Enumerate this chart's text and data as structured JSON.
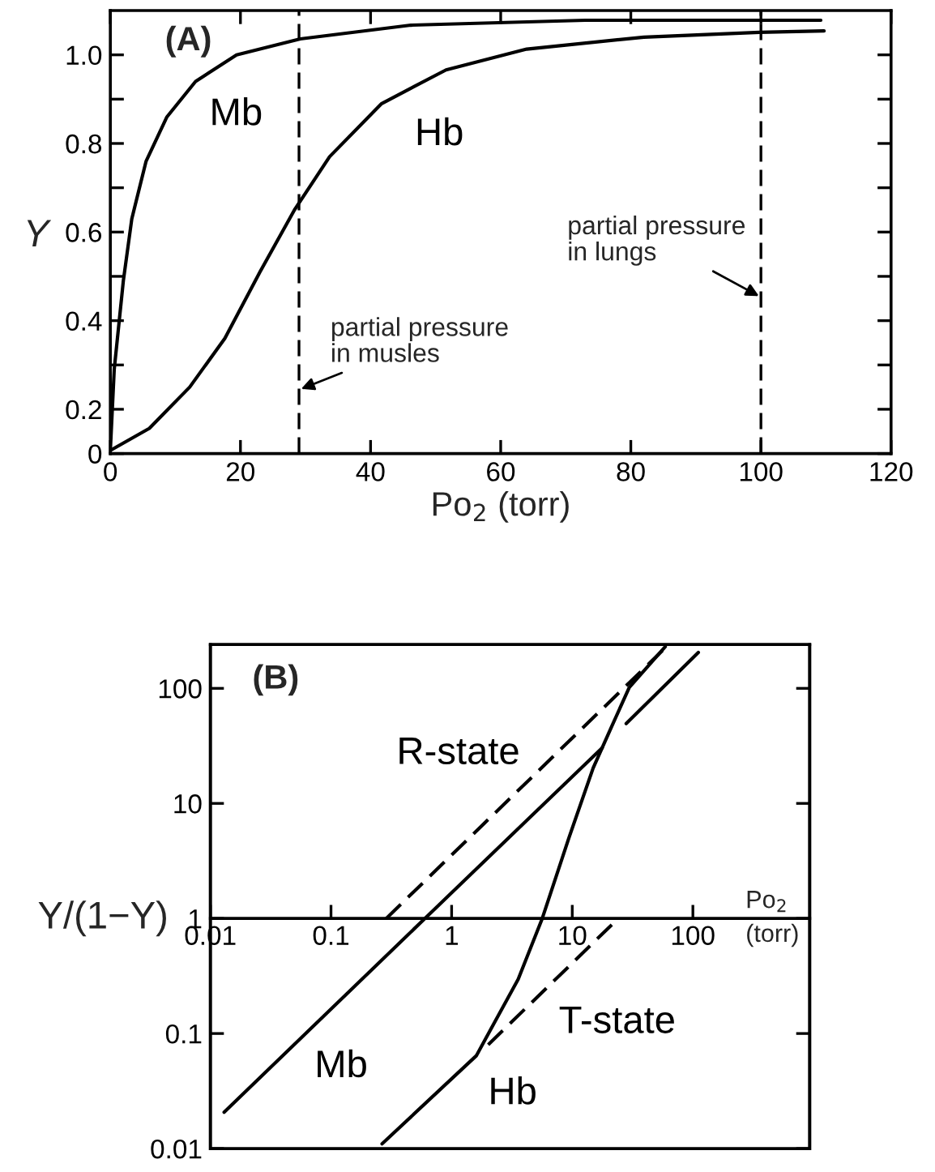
{
  "chart_data": [
    {
      "type": "line",
      "title": "(A)",
      "xlabel": "Po$_{2}$ (torr)",
      "ylabel": "Y",
      "xlim": [
        0,
        120
      ],
      "ylim": [
        0.1,
        1.1
      ],
      "xticks": [
        0,
        20,
        40,
        60,
        80,
        100,
        120
      ],
      "yticks": [
        {
          "value": 0.1,
          "label": "0"
        },
        0.2,
        {
          "value": 0.3,
          "label": null
        },
        0.4,
        {
          "value": 0.5,
          "label": null
        },
        0.6,
        {
          "value": 0.7,
          "label": null
        },
        0.8,
        {
          "value": 0.9,
          "label": null
        },
        {
          "value": 1.0,
          "label": "1.0"
        }
      ],
      "series": [
        {
          "name": "Mb",
          "color": "#000000",
          "line_style": "solid",
          "x": [
            0,
            0.6,
            2,
            3.3,
            5.5,
            8.7,
            13.1,
            19.4,
            29.2,
            46.2,
            73,
            109.2
          ],
          "values": [
            0.107,
            0.29,
            0.49,
            0.63,
            0.76,
            0.86,
            0.94,
            1.0,
            1.036,
            1.067,
            1.078,
            1.078
          ]
        },
        {
          "name": "Hb",
          "color": "#000000",
          "line_style": "solid",
          "x": [
            0,
            6,
            12.2,
            17.6,
            23,
            28.3,
            33.7,
            41.7,
            51.6,
            64,
            82,
            99.8,
            109.7
          ],
          "values": [
            0.107,
            0.157,
            0.25,
            0.36,
            0.51,
            0.65,
            0.77,
            0.89,
            0.966,
            1.013,
            1.04,
            1.051,
            1.054
          ]
        }
      ],
      "ref_lines": [
        {
          "axis": "x",
          "value": 29,
          "label": "partial pressure\nin musles",
          "line_style": "dashed",
          "color": "#000000"
        },
        {
          "axis": "x",
          "value": 100,
          "label": "partial pressure\nin lungs",
          "line_style": "dashed",
          "color": "#000000"
        }
      ]
    },
    {
      "type": "line",
      "title": "(B)",
      "xlabel": "Po$_{2}$\n(torr)",
      "ylabel": "Y/(1−Y)",
      "log": "xy",
      "xlim": [
        0.01,
        930
      ],
      "ylim": [
        0.01,
        240
      ],
      "xticks": [
        {
          "value": 0.01,
          "label": "0.01"
        },
        0.1,
        1,
        10,
        100
      ],
      "yticks": [
        0.01,
        0.1,
        1,
        10,
        100
      ],
      "series": [
        {
          "name": "Mb",
          "color": "#000000",
          "line_style": "solid",
          "x": [
            0.013,
            0.6,
            17.7,
            22,
            28,
            111
          ],
          "values": [
            0.0207,
            1,
            30.4,
            null,
            49.4,
            205
          ]
        },
        {
          "name": "Hb",
          "color": "#000000",
          "line_style": "solid",
          "x": [
            0.265,
            1.6,
            3.56,
            5.64,
            9.4,
            14.9,
            21,
            29.7,
            59
          ],
          "values": [
            0.011,
            0.064,
            0.296,
            1,
            5.05,
            20.3,
            45.5,
            102,
            230
          ]
        },
        {
          "name": "R-state",
          "color": "#000000",
          "line_style": "dashed",
          "x": [
            0.287,
            59
          ],
          "values": [
            1,
            225
          ]
        },
        {
          "name": "T-state",
          "color": "#000000",
          "line_style": "dashed",
          "x": [
            2.01,
            23.6
          ],
          "values": [
            0.08,
            0.98
          ]
        }
      ]
    }
  ]
}
